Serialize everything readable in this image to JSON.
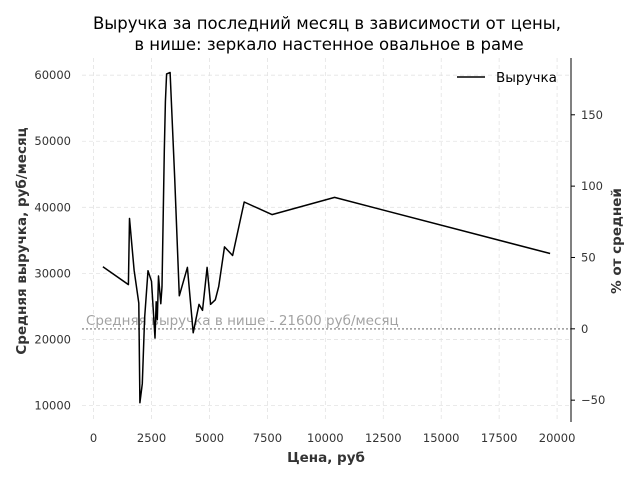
{
  "chart_data": {
    "type": "line",
    "title_lines": [
      "Выручка за последний месяц в зависимости от цены,",
      "в нише: зеркало настенное овальное в раме"
    ],
    "xlabel": "Цена, руб",
    "ylabel": "Средняя выручка, руб/месяц",
    "y2label": "% от средней",
    "xlim": [
      -500,
      20600
    ],
    "ylim": [
      7500,
      62600
    ],
    "y2lim": [
      -65.3,
      189.8
    ],
    "xticks": [
      0,
      2500,
      5000,
      7500,
      10000,
      12500,
      15000,
      17500,
      20000
    ],
    "yticks": [
      10000,
      20000,
      30000,
      40000,
      50000,
      60000
    ],
    "y2ticks": [
      -50,
      0,
      50,
      100,
      150
    ],
    "grid": true,
    "legend_position": "top-right",
    "series": [
      {
        "name": "Выручка",
        "color": "#000000",
        "x": [
          400,
          1500,
          1550,
          1750,
          1950,
          2000,
          2100,
          2200,
          2350,
          2500,
          2650,
          2700,
          2750,
          2800,
          2900,
          2950,
          3050,
          3100,
          3150,
          3300,
          3500,
          3700,
          4050,
          4300,
          4550,
          4700,
          4900,
          5050,
          5250,
          5400,
          5650,
          6000,
          6500,
          7700,
          10400,
          19700
        ],
        "y": [
          31000,
          28300,
          38300,
          30500,
          25500,
          10400,
          13300,
          23200,
          30400,
          28800,
          20200,
          25700,
          23000,
          29600,
          25400,
          28000,
          48500,
          56000,
          60200,
          60400,
          44400,
          26600,
          30900,
          21000,
          25300,
          24400,
          30900,
          25300,
          26000,
          28000,
          34000,
          32700,
          40800,
          38900,
          41500,
          33000
        ]
      }
    ],
    "reference_line": {
      "y": 21600,
      "label": "Средняя выручка в нише - 21600 руб/месяц",
      "color": "#999999"
    }
  }
}
